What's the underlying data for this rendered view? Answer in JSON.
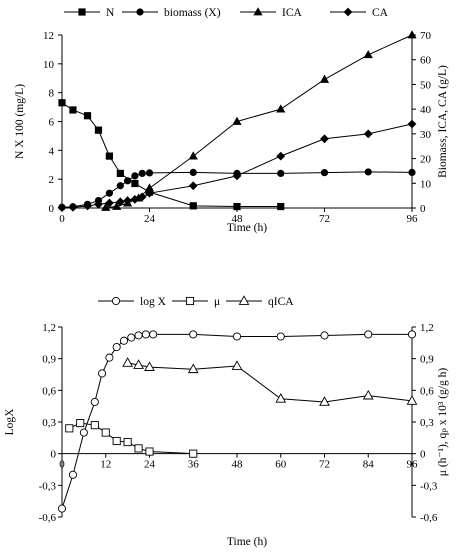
{
  "chart_data": [
    {
      "type": "line",
      "legend_position": "top",
      "x": {
        "label": "Time (h)",
        "min": 0,
        "max": 96,
        "ticks": [
          "0",
          "24",
          "48",
          "72",
          "96"
        ]
      },
      "y_left": {
        "label": "N X 100 (mg/L)",
        "min": 0,
        "max": 12,
        "ticks": [
          "0",
          "2",
          "4",
          "6",
          "8",
          "10",
          "12"
        ]
      },
      "y_right": {
        "label": "Biomass, ICA, CA (g/L)",
        "min": 0,
        "max": 70,
        "ticks": [
          "0",
          "10",
          "20",
          "30",
          "40",
          "50",
          "60",
          "70"
        ]
      },
      "grid": false,
      "series": [
        {
          "name": "N",
          "axis": "left",
          "marker": "square",
          "color": "#000000",
          "x": [
            0,
            3,
            7,
            10,
            13,
            16,
            20,
            24,
            36,
            48,
            60
          ],
          "y": [
            7.3,
            6.8,
            6.4,
            5.4,
            3.6,
            2.4,
            1.7,
            1.1,
            0.15,
            0.1,
            0.1
          ]
        },
        {
          "name": "biomass (X)",
          "axis": "right",
          "marker": "circle",
          "color": "#000000",
          "x": [
            0,
            3,
            7,
            10,
            13,
            16,
            18,
            20,
            22,
            24,
            36,
            48,
            60,
            72,
            84,
            96
          ],
          "y": [
            0.3,
            0.5,
            1.5,
            3.0,
            6.0,
            9.0,
            11.0,
            13.0,
            14.0,
            14.2,
            14.4,
            14.0,
            14.0,
            14.3,
            14.6,
            14.4
          ]
        },
        {
          "name": "ICA",
          "axis": "right",
          "marker": "triangle",
          "color": "#000000",
          "x": [
            12,
            15,
            18,
            21,
            24,
            36,
            48,
            60,
            72,
            84,
            96
          ],
          "y": [
            0.2,
            0.6,
            2.0,
            4.0,
            8.0,
            21.0,
            35.0,
            40.0,
            52.0,
            62.0,
            70.0
          ]
        },
        {
          "name": "CA",
          "axis": "right",
          "marker": "diamond",
          "color": "#000000",
          "x": [
            0,
            3,
            7,
            10,
            13,
            16,
            18,
            20,
            22,
            24,
            36,
            48,
            60,
            72,
            84,
            96
          ],
          "y": [
            0.2,
            0.3,
            0.8,
            1.5,
            2.0,
            2.5,
            3.0,
            3.5,
            4.5,
            6.0,
            9.0,
            13.0,
            21.0,
            28.0,
            30.0,
            34.0
          ]
        }
      ]
    },
    {
      "type": "line",
      "legend_position": "top",
      "x": {
        "label": "Time (h)",
        "min": 0,
        "max": 96,
        "ticks": [
          "0",
          "12",
          "24",
          "36",
          "48",
          "60",
          "72",
          "84",
          "96"
        ]
      },
      "y_left": {
        "label": "LogX",
        "min": -0.6,
        "max": 1.2,
        "ticks": [
          "-0,6",
          "-0,3",
          "0",
          "0,3",
          "0,6",
          "0,9",
          "1,2"
        ]
      },
      "y_right": {
        "label": "μ (h⁻¹), qₚ x 10³ (g/g h)",
        "min": -0.6,
        "max": 1.2,
        "ticks": [
          "-0,6",
          "-0,3",
          "0",
          "0,3",
          "0,6",
          "0,9",
          "1,2"
        ]
      },
      "grid": false,
      "series": [
        {
          "name": "log X",
          "axis": "left",
          "marker": "open-circle",
          "color": "#000000",
          "x": [
            0,
            3,
            6,
            9,
            11,
            13,
            15,
            17,
            19,
            21,
            23,
            25,
            36,
            48,
            60,
            72,
            84,
            96
          ],
          "y": [
            -0.52,
            -0.2,
            0.2,
            0.49,
            0.76,
            0.91,
            1.01,
            1.07,
            1.1,
            1.12,
            1.13,
            1.13,
            1.13,
            1.11,
            1.11,
            1.12,
            1.13,
            1.13
          ]
        },
        {
          "name": "μ",
          "axis": "right",
          "marker": "open-square",
          "color": "#000000",
          "x": [
            2,
            5,
            9,
            12,
            15,
            18,
            21,
            24,
            36
          ],
          "y": [
            0.24,
            0.29,
            0.27,
            0.2,
            0.12,
            0.11,
            0.05,
            0.02,
            0.0
          ]
        },
        {
          "name": "qICA",
          "axis": "right",
          "marker": "open-triangle",
          "color": "#000000",
          "x": [
            18,
            21,
            24,
            36,
            48,
            60,
            72,
            84,
            96
          ],
          "y": [
            0.86,
            0.84,
            0.82,
            0.8,
            0.83,
            0.52,
            0.49,
            0.55,
            0.5
          ]
        }
      ]
    }
  ]
}
